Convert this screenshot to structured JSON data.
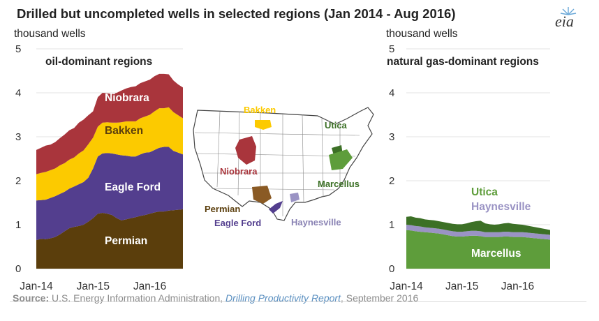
{
  "title": "Drilled but uncompleted wells in selected regions (Jan 2014 - Aug 2016)",
  "logo_text": "eia",
  "source": {
    "label": "Source:",
    "agency": "U.S. Energy Information Administration,",
    "report": "Drilling Productivity Report",
    "date": ", September 2016"
  },
  "map_labels": {
    "bakken": "Bakken",
    "niobrara": "Niobrara",
    "permian": "Permian",
    "eagle_ford": "Eagle Ford",
    "haynesville": "Haynesville",
    "utica": "Utica",
    "marcellus": "Marcellus"
  },
  "colors": {
    "permian": "#5b3e0c",
    "eagle_ford": "#533e8e",
    "bakken": "#fcca00",
    "niobrara": "#a9353c",
    "marcellus": "#5e9d3b",
    "haynesville": "#9a93c4",
    "utica": "#3c7026",
    "grid": "#e3e3e3",
    "axis_text": "#333333"
  },
  "chart_data": [
    {
      "type": "area",
      "stacked": true,
      "ylabel": "thousand wells",
      "subtitle": "oil-dominant regions",
      "ylim": [
        0,
        5
      ],
      "yticks": [
        0,
        1,
        2,
        3,
        4,
        5
      ],
      "x": [
        "Jan-14",
        "Feb-14",
        "Mar-14",
        "Apr-14",
        "May-14",
        "Jun-14",
        "Jul-14",
        "Aug-14",
        "Sep-14",
        "Oct-14",
        "Nov-14",
        "Dec-14",
        "Jan-15",
        "Feb-15",
        "Mar-15",
        "Apr-15",
        "May-15",
        "Jun-15",
        "Jul-15",
        "Aug-15",
        "Sep-15",
        "Oct-15",
        "Nov-15",
        "Dec-15",
        "Jan-16",
        "Feb-16",
        "Mar-16",
        "Apr-16",
        "May-16",
        "Jun-16",
        "Jul-16",
        "Aug-16"
      ],
      "xtick_labels": [
        "Jan-14",
        "Jan-15",
        "Jan-16"
      ],
      "xtick_index": [
        0,
        12,
        24
      ],
      "series": [
        {
          "name": "Permian",
          "color_key": "permian",
          "values": [
            0.65,
            0.68,
            0.67,
            0.69,
            0.72,
            0.78,
            0.85,
            0.92,
            0.95,
            0.97,
            1.0,
            1.07,
            1.15,
            1.25,
            1.27,
            1.25,
            1.22,
            1.15,
            1.1,
            1.12,
            1.15,
            1.17,
            1.2,
            1.22,
            1.25,
            1.28,
            1.3,
            1.3,
            1.32,
            1.33,
            1.34,
            1.35
          ]
        },
        {
          "name": "Eagle Ford",
          "color_key": "eagle_ford",
          "values": [
            0.9,
            0.88,
            0.9,
            0.92,
            0.93,
            0.92,
            0.9,
            0.9,
            0.92,
            0.95,
            0.97,
            1.0,
            1.13,
            1.3,
            1.35,
            1.38,
            1.4,
            1.45,
            1.48,
            1.45,
            1.4,
            1.38,
            1.4,
            1.42,
            1.4,
            1.42,
            1.45,
            1.47,
            1.45,
            1.35,
            1.3,
            1.25
          ]
        },
        {
          "name": "Bakken",
          "color_key": "bakken",
          "values": [
            0.6,
            0.62,
            0.63,
            0.63,
            0.63,
            0.65,
            0.65,
            0.66,
            0.66,
            0.7,
            0.72,
            0.76,
            0.7,
            0.68,
            0.7,
            0.7,
            0.7,
            0.72,
            0.75,
            0.78,
            0.8,
            0.8,
            0.82,
            0.82,
            0.85,
            0.88,
            0.9,
            0.88,
            0.9,
            0.88,
            0.85,
            0.82
          ]
        },
        {
          "name": "Niobrara",
          "color_key": "niobrara",
          "values": [
            0.55,
            0.57,
            0.6,
            0.58,
            0.6,
            0.62,
            0.65,
            0.67,
            0.67,
            0.7,
            0.7,
            0.66,
            0.6,
            0.67,
            0.68,
            0.66,
            0.65,
            0.68,
            0.72,
            0.75,
            0.78,
            0.8,
            0.8,
            0.8,
            0.8,
            0.8,
            0.78,
            0.78,
            0.75,
            0.72,
            0.7,
            0.7
          ]
        }
      ]
    },
    {
      "type": "area",
      "stacked": true,
      "ylabel": "thousand wells",
      "subtitle": "natural gas-dominant regions",
      "ylim": [
        0,
        5
      ],
      "yticks": [
        0,
        1,
        2,
        3,
        4,
        5
      ],
      "x": [
        "Jan-14",
        "Feb-14",
        "Mar-14",
        "Apr-14",
        "May-14",
        "Jun-14",
        "Jul-14",
        "Aug-14",
        "Sep-14",
        "Oct-14",
        "Nov-14",
        "Dec-14",
        "Jan-15",
        "Feb-15",
        "Mar-15",
        "Apr-15",
        "May-15",
        "Jun-15",
        "Jul-15",
        "Aug-15",
        "Sep-15",
        "Oct-15",
        "Nov-15",
        "Dec-15",
        "Jan-16",
        "Feb-16",
        "Mar-16",
        "Apr-16",
        "May-16",
        "Jun-16",
        "Jul-16",
        "Aug-16"
      ],
      "xtick_labels": [
        "Jan-14",
        "Jan-15",
        "Jan-16"
      ],
      "xtick_index": [
        0,
        12,
        24
      ],
      "series": [
        {
          "name": "Marcellus",
          "color_key": "marcellus",
          "values": [
            0.88,
            0.87,
            0.85,
            0.84,
            0.83,
            0.82,
            0.81,
            0.8,
            0.78,
            0.76,
            0.74,
            0.73,
            0.73,
            0.74,
            0.75,
            0.75,
            0.74,
            0.72,
            0.72,
            0.72,
            0.72,
            0.73,
            0.73,
            0.72,
            0.72,
            0.72,
            0.71,
            0.7,
            0.69,
            0.68,
            0.67,
            0.66
          ]
        },
        {
          "name": "Haynesville",
          "color_key": "haynesville",
          "values": [
            0.12,
            0.12,
            0.12,
            0.12,
            0.11,
            0.11,
            0.11,
            0.11,
            0.11,
            0.11,
            0.11,
            0.11,
            0.11,
            0.11,
            0.11,
            0.11,
            0.11,
            0.11,
            0.11,
            0.11,
            0.11,
            0.11,
            0.11,
            0.11,
            0.11,
            0.11,
            0.11,
            0.11,
            0.11,
            0.11,
            0.11,
            0.11
          ]
        },
        {
          "name": "Utica",
          "color_key": "utica",
          "values": [
            0.18,
            0.2,
            0.19,
            0.19,
            0.18,
            0.18,
            0.18,
            0.17,
            0.17,
            0.17,
            0.17,
            0.17,
            0.17,
            0.18,
            0.2,
            0.22,
            0.24,
            0.2,
            0.18,
            0.17,
            0.18,
            0.19,
            0.2,
            0.19,
            0.18,
            0.17,
            0.16,
            0.15,
            0.14,
            0.13,
            0.12,
            0.11
          ]
        }
      ]
    }
  ]
}
